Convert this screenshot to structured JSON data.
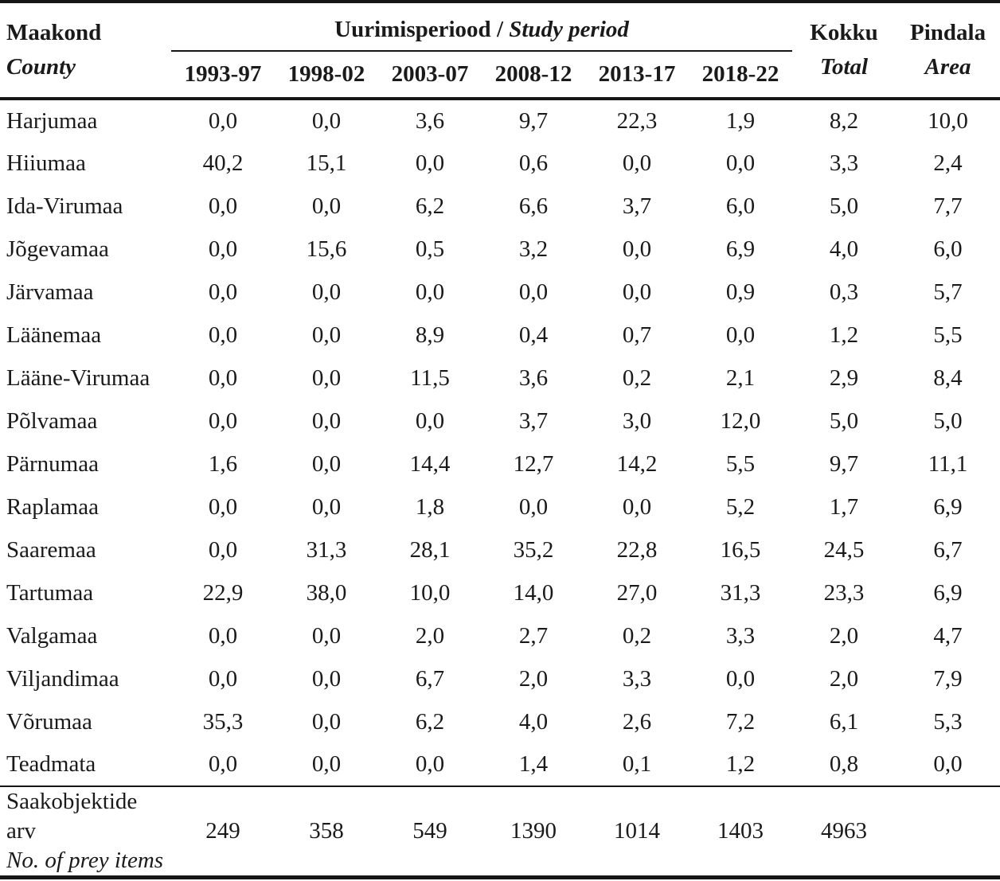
{
  "table": {
    "header": {
      "county_label_et": "Maakond",
      "county_label_en": "County",
      "period_group_label_et": "Uurimisperiood",
      "period_group_separator": "/",
      "period_group_label_en": "Study period",
      "period_columns": [
        "1993-97",
        "1998-02",
        "2003-07",
        "2008-12",
        "2013-17",
        "2018-22"
      ],
      "total_label_et": "Kokku",
      "total_label_en": "Total",
      "area_label_et": "Pindala",
      "area_label_en": "Area"
    },
    "rows": [
      {
        "county": "Harjumaa",
        "values": [
          "0,0",
          "0,0",
          "3,6",
          "9,7",
          "22,3",
          "1,9"
        ],
        "total": "8,2",
        "area": "10,0"
      },
      {
        "county": "Hiiumaa",
        "values": [
          "40,2",
          "15,1",
          "0,0",
          "0,6",
          "0,0",
          "0,0"
        ],
        "total": "3,3",
        "area": "2,4"
      },
      {
        "county": "Ida-Virumaa",
        "values": [
          "0,0",
          "0,0",
          "6,2",
          "6,6",
          "3,7",
          "6,0"
        ],
        "total": "5,0",
        "area": "7,7"
      },
      {
        "county": "Jõgevamaa",
        "values": [
          "0,0",
          "15,6",
          "0,5",
          "3,2",
          "0,0",
          "6,9"
        ],
        "total": "4,0",
        "area": "6,0"
      },
      {
        "county": "Järvamaa",
        "values": [
          "0,0",
          "0,0",
          "0,0",
          "0,0",
          "0,0",
          "0,9"
        ],
        "total": "0,3",
        "area": "5,7"
      },
      {
        "county": "Läänemaa",
        "values": [
          "0,0",
          "0,0",
          "8,9",
          "0,4",
          "0,7",
          "0,0"
        ],
        "total": "1,2",
        "area": "5,5"
      },
      {
        "county": "Lääne-Virumaa",
        "values": [
          "0,0",
          "0,0",
          "11,5",
          "3,6",
          "0,2",
          "2,1"
        ],
        "total": "2,9",
        "area": "8,4"
      },
      {
        "county": "Põlvamaa",
        "values": [
          "0,0",
          "0,0",
          "0,0",
          "3,7",
          "3,0",
          "12,0"
        ],
        "total": "5,0",
        "area": "5,0"
      },
      {
        "county": "Pärnumaa",
        "values": [
          "1,6",
          "0,0",
          "14,4",
          "12,7",
          "14,2",
          "5,5"
        ],
        "total": "9,7",
        "area": "11,1"
      },
      {
        "county": "Raplamaa",
        "values": [
          "0,0",
          "0,0",
          "1,8",
          "0,0",
          "0,0",
          "5,2"
        ],
        "total": "1,7",
        "area": "6,9"
      },
      {
        "county": "Saaremaa",
        "values": [
          "0,0",
          "31,3",
          "28,1",
          "35,2",
          "22,8",
          "16,5"
        ],
        "total": "24,5",
        "area": "6,7"
      },
      {
        "county": "Tartumaa",
        "values": [
          "22,9",
          "38,0",
          "10,0",
          "14,0",
          "27,0",
          "31,3"
        ],
        "total": "23,3",
        "area": "6,9"
      },
      {
        "county": "Valgamaa",
        "values": [
          "0,0",
          "0,0",
          "2,0",
          "2,7",
          "0,2",
          "3,3"
        ],
        "total": "2,0",
        "area": "4,7"
      },
      {
        "county": "Viljandimaa",
        "values": [
          "0,0",
          "0,0",
          "6,7",
          "2,0",
          "3,3",
          "0,0"
        ],
        "total": "2,0",
        "area": "7,9"
      },
      {
        "county": "Võrumaa",
        "values": [
          "35,3",
          "0,0",
          "6,2",
          "4,0",
          "2,6",
          "7,2"
        ],
        "total": "6,1",
        "area": "5,3"
      },
      {
        "county": "Teadmata",
        "values": [
          "0,0",
          "0,0",
          "0,0",
          "1,4",
          "0,1",
          "1,2"
        ],
        "total": "0,8",
        "area": "0,0"
      }
    ],
    "footer": {
      "label_et": "Saakobjektide arv",
      "label_en": "No. of prey items",
      "values": [
        "249",
        "358",
        "549",
        "1390",
        "1014",
        "1403"
      ],
      "total": "4963",
      "area": ""
    }
  }
}
